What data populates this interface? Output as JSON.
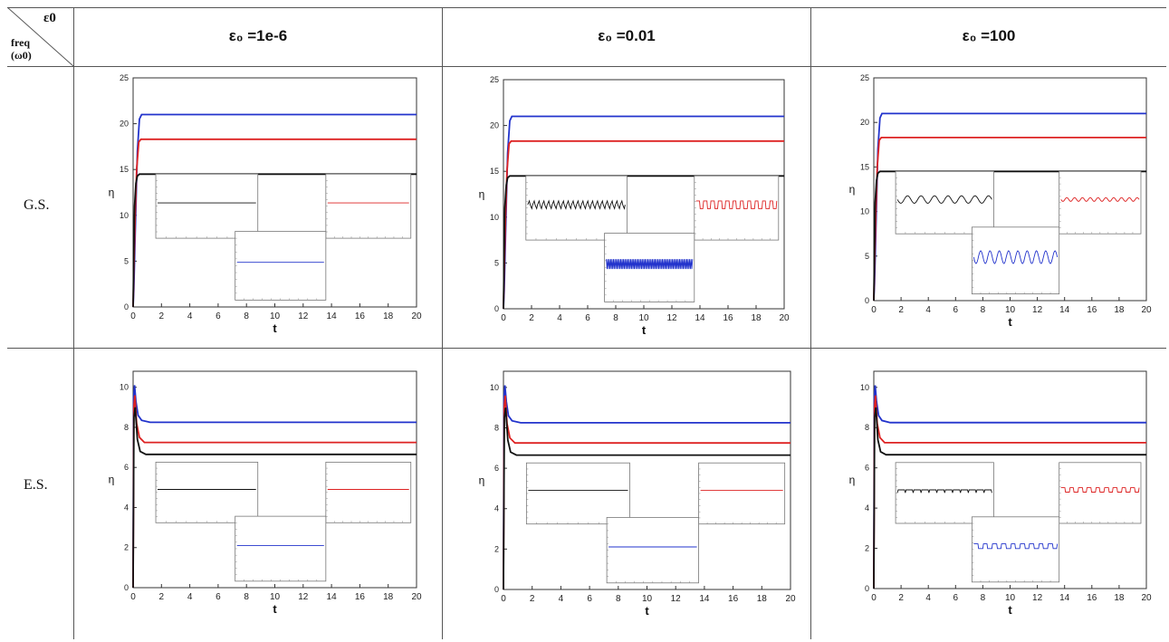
{
  "table": {
    "corner": {
      "top": "ε0",
      "bottom_line1": "freq",
      "bottom_line2": "(ω0)"
    },
    "columns": [
      "ε₀ =1e-6",
      "ε₀ =0.01",
      "ε₀ =100"
    ],
    "rows": [
      "G.S.",
      "E.S."
    ]
  },
  "colors": {
    "blue": "#2233cc",
    "red": "#dd2222",
    "black": "#111111",
    "grid_line": "#555555"
  },
  "chart_data": [
    {
      "type": "line",
      "row": "G.S.",
      "column": "ε₀ =1e-6",
      "xlabel": "t",
      "ylabel": "η",
      "xlim": [
        0,
        20
      ],
      "ylim": [
        0,
        25
      ],
      "xticks": [
        0,
        2,
        4,
        6,
        8,
        10,
        12,
        14,
        16,
        18,
        20
      ],
      "yticks": [
        0,
        5,
        10,
        15,
        20,
        25
      ],
      "series": [
        {
          "color": "#2233cc",
          "x": [
            0,
            0.05,
            0.15,
            0.3,
            0.45,
            0.6,
            20
          ],
          "y": [
            0,
            2,
            8,
            17,
            20.5,
            21,
            21
          ]
        },
        {
          "color": "#dd2222",
          "x": [
            0,
            0.05,
            0.15,
            0.25,
            0.4,
            0.55,
            20
          ],
          "y": [
            0,
            4,
            10,
            15,
            18,
            18.3,
            18.3
          ]
        },
        {
          "color": "#111111",
          "x": [
            0,
            0.05,
            0.1,
            0.2,
            0.3,
            0.45,
            20
          ],
          "y": [
            0,
            6,
            11,
            13.5,
            14.3,
            14.5,
            14.5
          ]
        }
      ],
      "insets": [
        {
          "color": "#111111",
          "pattern": "flat"
        },
        {
          "color": "#dd2222",
          "pattern": "flat"
        },
        {
          "color": "#2233cc",
          "pattern": "flat"
        }
      ]
    },
    {
      "type": "line",
      "row": "G.S.",
      "column": "ε₀ =0.01",
      "xlabel": "t",
      "ylabel": "η",
      "xlim": [
        0,
        20
      ],
      "ylim": [
        0,
        25
      ],
      "xticks": [
        0,
        2,
        4,
        6,
        8,
        10,
        12,
        14,
        16,
        18,
        20
      ],
      "yticks": [
        0,
        5,
        10,
        15,
        20,
        25
      ],
      "series": [
        {
          "color": "#2233cc",
          "x": [
            0,
            0.05,
            0.15,
            0.3,
            0.45,
            0.6,
            20
          ],
          "y": [
            0,
            2,
            8,
            17,
            20.5,
            21,
            21
          ]
        },
        {
          "color": "#dd2222",
          "x": [
            0,
            0.05,
            0.15,
            0.25,
            0.4,
            0.55,
            20
          ],
          "y": [
            0,
            4,
            10,
            15,
            18,
            18.3,
            18.3
          ]
        },
        {
          "color": "#111111",
          "x": [
            0,
            0.05,
            0.1,
            0.2,
            0.3,
            0.45,
            20
          ],
          "y": [
            0,
            6,
            11,
            13.5,
            14.3,
            14.5,
            14.5
          ]
        }
      ],
      "insets": [
        {
          "color": "#111111",
          "pattern": "jagged"
        },
        {
          "color": "#dd2222",
          "pattern": "square"
        },
        {
          "color": "#2233cc",
          "pattern": "dense"
        }
      ]
    },
    {
      "type": "line",
      "row": "G.S.",
      "column": "ε₀ =100",
      "xlabel": "t",
      "ylabel": "η",
      "xlim": [
        0,
        20
      ],
      "ylim": [
        0,
        25
      ],
      "xticks": [
        0,
        2,
        4,
        6,
        8,
        10,
        12,
        14,
        16,
        18,
        20
      ],
      "yticks": [
        0,
        5,
        10,
        15,
        20,
        25
      ],
      "series": [
        {
          "color": "#2233cc",
          "x": [
            0,
            0.05,
            0.15,
            0.3,
            0.45,
            0.6,
            20
          ],
          "y": [
            0,
            2,
            8,
            17,
            20.5,
            21,
            21
          ]
        },
        {
          "color": "#dd2222",
          "x": [
            0,
            0.05,
            0.15,
            0.25,
            0.4,
            0.55,
            20
          ],
          "y": [
            0,
            4,
            10,
            15,
            18,
            18.3,
            18.3
          ]
        },
        {
          "color": "#111111",
          "x": [
            0,
            0.05,
            0.1,
            0.2,
            0.3,
            0.45,
            20
          ],
          "y": [
            0,
            6,
            11,
            13.5,
            14.3,
            14.5,
            14.5
          ]
        }
      ],
      "insets": [
        {
          "color": "#111111",
          "pattern": "sine"
        },
        {
          "color": "#dd2222",
          "pattern": "smallsine"
        },
        {
          "color": "#2233cc",
          "pattern": "bigsine"
        }
      ]
    },
    {
      "type": "line",
      "row": "E.S.",
      "column": "ε₀ =1e-6",
      "xlabel": "t",
      "ylabel": "η",
      "xlim": [
        0,
        20
      ],
      "ylim": [
        0,
        10.8
      ],
      "xticks": [
        0,
        2,
        4,
        6,
        8,
        10,
        12,
        14,
        16,
        18,
        20
      ],
      "yticks": [
        0,
        2,
        4,
        6,
        8,
        10
      ],
      "series": [
        {
          "color": "#2233cc",
          "x": [
            0,
            0.04,
            0.1,
            0.2,
            0.35,
            0.6,
            1.2,
            20
          ],
          "y": [
            0,
            9.5,
            10.1,
            9.3,
            8.6,
            8.35,
            8.25,
            8.25
          ]
        },
        {
          "color": "#dd2222",
          "x": [
            0,
            0.05,
            0.12,
            0.25,
            0.45,
            0.8,
            20
          ],
          "y": [
            0,
            9,
            9.6,
            8.2,
            7.5,
            7.25,
            7.25
          ]
        },
        {
          "color": "#111111",
          "x": [
            0,
            0.06,
            0.15,
            0.3,
            0.5,
            0.9,
            20
          ],
          "y": [
            0,
            8.5,
            9,
            7.4,
            6.8,
            6.65,
            6.65
          ]
        }
      ],
      "insets": [
        {
          "color": "#111111",
          "pattern": "flat"
        },
        {
          "color": "#dd2222",
          "pattern": "flat"
        },
        {
          "color": "#2233cc",
          "pattern": "flat"
        }
      ]
    },
    {
      "type": "line",
      "row": "E.S.",
      "column": "ε₀ =0.01",
      "xlabel": "t",
      "ylabel": "η",
      "xlim": [
        0,
        20
      ],
      "ylim": [
        0,
        10.8
      ],
      "xticks": [
        0,
        2,
        4,
        6,
        8,
        10,
        12,
        14,
        16,
        18,
        20
      ],
      "yticks": [
        0,
        2,
        4,
        6,
        8,
        10
      ],
      "series": [
        {
          "color": "#2233cc",
          "x": [
            0,
            0.04,
            0.1,
            0.2,
            0.35,
            0.6,
            1.2,
            20
          ],
          "y": [
            0,
            9.5,
            10.1,
            9.3,
            8.6,
            8.35,
            8.25,
            8.25
          ]
        },
        {
          "color": "#dd2222",
          "x": [
            0,
            0.05,
            0.12,
            0.25,
            0.45,
            0.8,
            20
          ],
          "y": [
            0,
            9,
            9.6,
            8.2,
            7.5,
            7.25,
            7.25
          ]
        },
        {
          "color": "#111111",
          "x": [
            0,
            0.06,
            0.15,
            0.3,
            0.5,
            0.9,
            20
          ],
          "y": [
            0,
            8.5,
            9,
            7.4,
            6.8,
            6.65,
            6.65
          ]
        }
      ],
      "insets": [
        {
          "color": "#111111",
          "pattern": "flat"
        },
        {
          "color": "#dd2222",
          "pattern": "flat"
        },
        {
          "color": "#2233cc",
          "pattern": "flat"
        }
      ]
    },
    {
      "type": "line",
      "row": "E.S.",
      "column": "ε₀ =100",
      "xlabel": "t",
      "ylabel": "η",
      "xlim": [
        0,
        20
      ],
      "ylim": [
        0,
        10.8
      ],
      "xticks": [
        0,
        2,
        4,
        6,
        8,
        10,
        12,
        14,
        16,
        18,
        20
      ],
      "yticks": [
        0,
        2,
        4,
        6,
        8,
        10
      ],
      "series": [
        {
          "color": "#2233cc",
          "x": [
            0,
            0.04,
            0.1,
            0.2,
            0.35,
            0.6,
            1.2,
            20
          ],
          "y": [
            0,
            9.5,
            10.1,
            9.3,
            8.6,
            8.35,
            8.25,
            8.25
          ]
        },
        {
          "color": "#dd2222",
          "x": [
            0,
            0.05,
            0.12,
            0.25,
            0.45,
            0.8,
            20
          ],
          "y": [
            0,
            9,
            9.6,
            8.2,
            7.5,
            7.25,
            7.25
          ]
        },
        {
          "color": "#111111",
          "x": [
            0,
            0.06,
            0.15,
            0.3,
            0.5,
            0.9,
            20
          ],
          "y": [
            0,
            8.5,
            9,
            7.4,
            6.8,
            6.65,
            6.65
          ]
        }
      ],
      "insets": [
        {
          "color": "#111111",
          "pattern": "flatdots"
        },
        {
          "color": "#dd2222",
          "pattern": "smallsq"
        },
        {
          "color": "#2233cc",
          "pattern": "smallsq"
        }
      ]
    }
  ]
}
